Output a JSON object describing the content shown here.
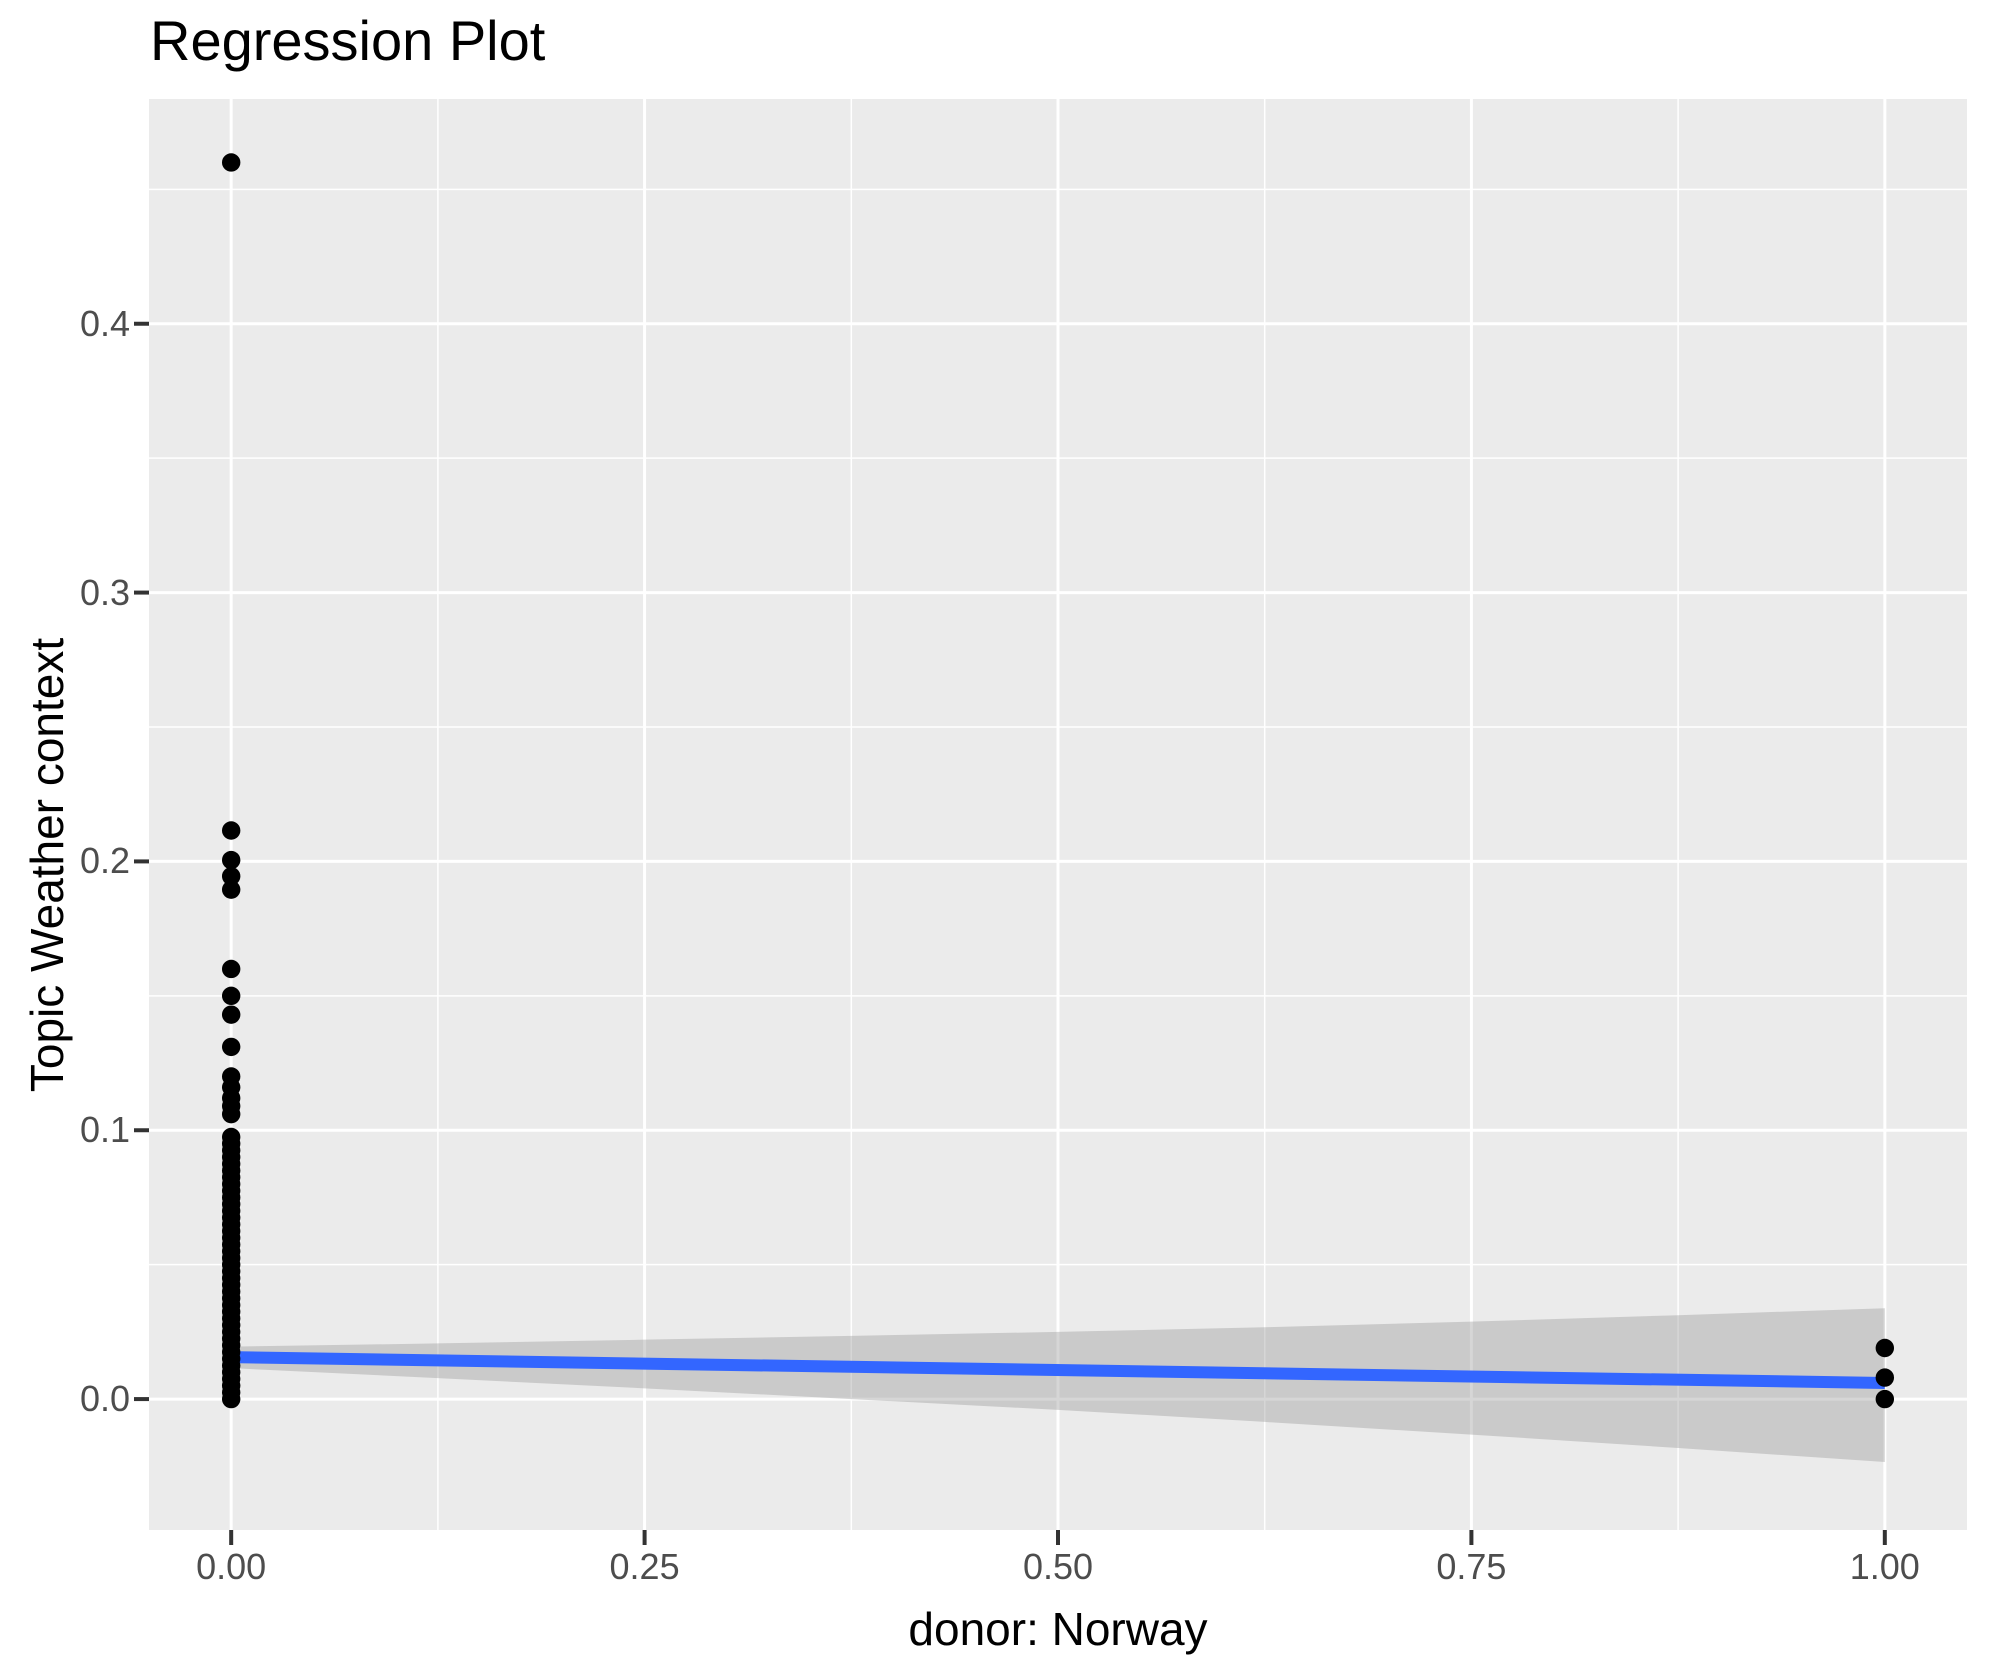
{
  "chart_data": {
    "type": "scatter",
    "title": "Regression Plot",
    "xlabel": "donor: Norway",
    "ylabel": "Topic Weather context",
    "xlim": [
      -0.0497,
      1.0497
    ],
    "ylim": [
      -0.0487,
      0.4836
    ],
    "grid": true,
    "legend": "none",
    "x_ticks": [
      {
        "value": 0.0,
        "label": "0.00"
      },
      {
        "value": 0.25,
        "label": "0.25"
      },
      {
        "value": 0.5,
        "label": "0.50"
      },
      {
        "value": 0.75,
        "label": "0.75"
      },
      {
        "value": 1.0,
        "label": "1.00"
      }
    ],
    "y_ticks": [
      {
        "value": 0.0,
        "label": "0.0"
      },
      {
        "value": 0.1,
        "label": "0.1"
      },
      {
        "value": 0.2,
        "label": "0.2"
      },
      {
        "value": 0.3,
        "label": "0.3"
      },
      {
        "value": 0.4,
        "label": "0.4"
      }
    ],
    "x_minor_ticks": [
      0.125,
      0.375,
      0.625,
      0.875
    ],
    "y_minor_ticks": [
      0.05,
      0.15,
      0.25,
      0.35,
      0.45
    ],
    "series": [
      {
        "name": "observations",
        "marker": "point",
        "groups": [
          {
            "x": 0,
            "y_values": [
              0.0,
              0.0025,
              0.005,
              0.0075,
              0.01,
              0.0125,
              0.015,
              0.0175,
              0.02,
              0.0225,
              0.025,
              0.0275,
              0.03,
              0.0325,
              0.035,
              0.0375,
              0.04,
              0.0425,
              0.045,
              0.0475,
              0.05,
              0.0525,
              0.055,
              0.0575,
              0.06,
              0.0625,
              0.065,
              0.0675,
              0.07,
              0.0725,
              0.075,
              0.0775,
              0.08,
              0.0825,
              0.085,
              0.0875,
              0.09,
              0.0925,
              0.095,
              0.0975,
              0.106,
              0.109,
              0.112,
              0.116,
              0.12,
              0.131,
              0.143,
              0.15,
              0.16,
              0.1895,
              0.1945,
              0.2005,
              0.2115,
              0.46
            ]
          },
          {
            "x": 1,
            "y_values": [
              0.0,
              0.008,
              0.019
            ]
          }
        ]
      }
    ],
    "regression_line": {
      "x": [
        0,
        1
      ],
      "y": [
        0.0156,
        0.006
      ]
    },
    "confidence_band": {
      "x": [
        0,
        0.125,
        0.25,
        0.375,
        0.5,
        0.625,
        0.75,
        0.875,
        1
      ],
      "upper": [
        0.0195,
        0.0207,
        0.0221,
        0.0235,
        0.025,
        0.0267,
        0.0288,
        0.0312,
        0.0338
      ],
      "lower": [
        0.0115,
        0.0078,
        0.004,
        0.0,
        -0.004,
        -0.0085,
        -0.0132,
        -0.0182,
        -0.0234
      ]
    }
  },
  "colors": {
    "background": "#FFFFFF",
    "panel_background": "#EBEBEB",
    "gridline": "#FFFFFF",
    "point": "#000000",
    "regression_line": "#3366FF",
    "confidence_band": "rgba(153,153,153,0.40)",
    "tick_label": "#4D4D4D",
    "tick_mark": "#333333",
    "title": "#000000"
  }
}
